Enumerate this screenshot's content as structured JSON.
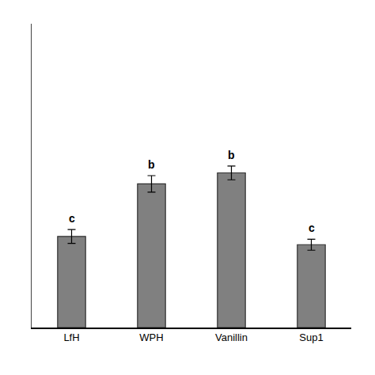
{
  "chart_data": {
    "type": "bar",
    "categories": [
      "LfH",
      "WPH",
      "Vanillin",
      "Sup1"
    ],
    "values": [
      33,
      52,
      56,
      30
    ],
    "errors": [
      2.5,
      3.0,
      2.5,
      2.0
    ],
    "annotations": [
      "c",
      "b",
      "b",
      "c"
    ],
    "color": "#808080",
    "ylim": [
      0,
      110
    ],
    "yticks": [],
    "grid": false,
    "tick_labels": "x"
  }
}
